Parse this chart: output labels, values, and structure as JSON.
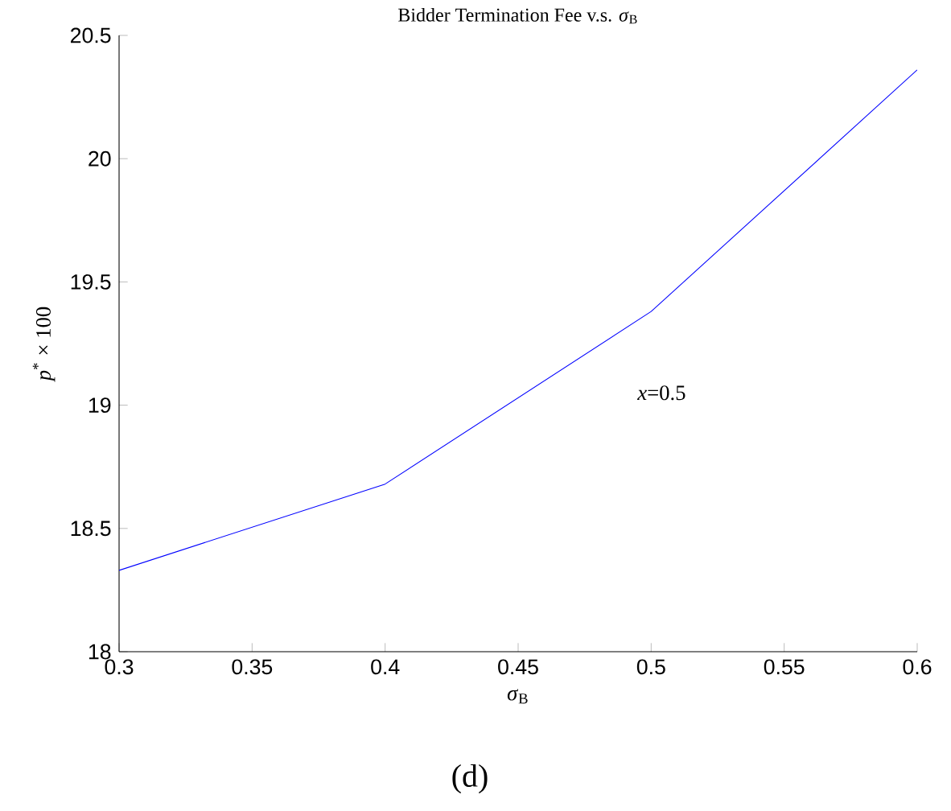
{
  "chart_data": {
    "type": "line",
    "title": "Bidder Termination Fee v.s. *σ*$_{B}$",
    "xlabel": "*σ*$_{B}$",
    "ylabel": "*p*$^{*}$ × 100",
    "x": [
      0.3,
      0.4,
      0.5,
      0.6
    ],
    "series": [
      {
        "color": "#0000ff",
        "values": [
          18.33,
          18.68,
          19.38,
          20.36
        ]
      }
    ],
    "xlim": [
      0.3,
      0.6
    ],
    "xticks": [
      0.3,
      0.35,
      0.4,
      0.45,
      0.5,
      0.55,
      0.6
    ],
    "ylim": [
      18,
      20.5
    ],
    "yticks": [
      18,
      18.5,
      19,
      19.5,
      20,
      20.5
    ],
    "grid": false,
    "marker": "none",
    "line_style": "solid",
    "annotations": [
      "*x*=0.5",
      "(d)"
    ]
  }
}
